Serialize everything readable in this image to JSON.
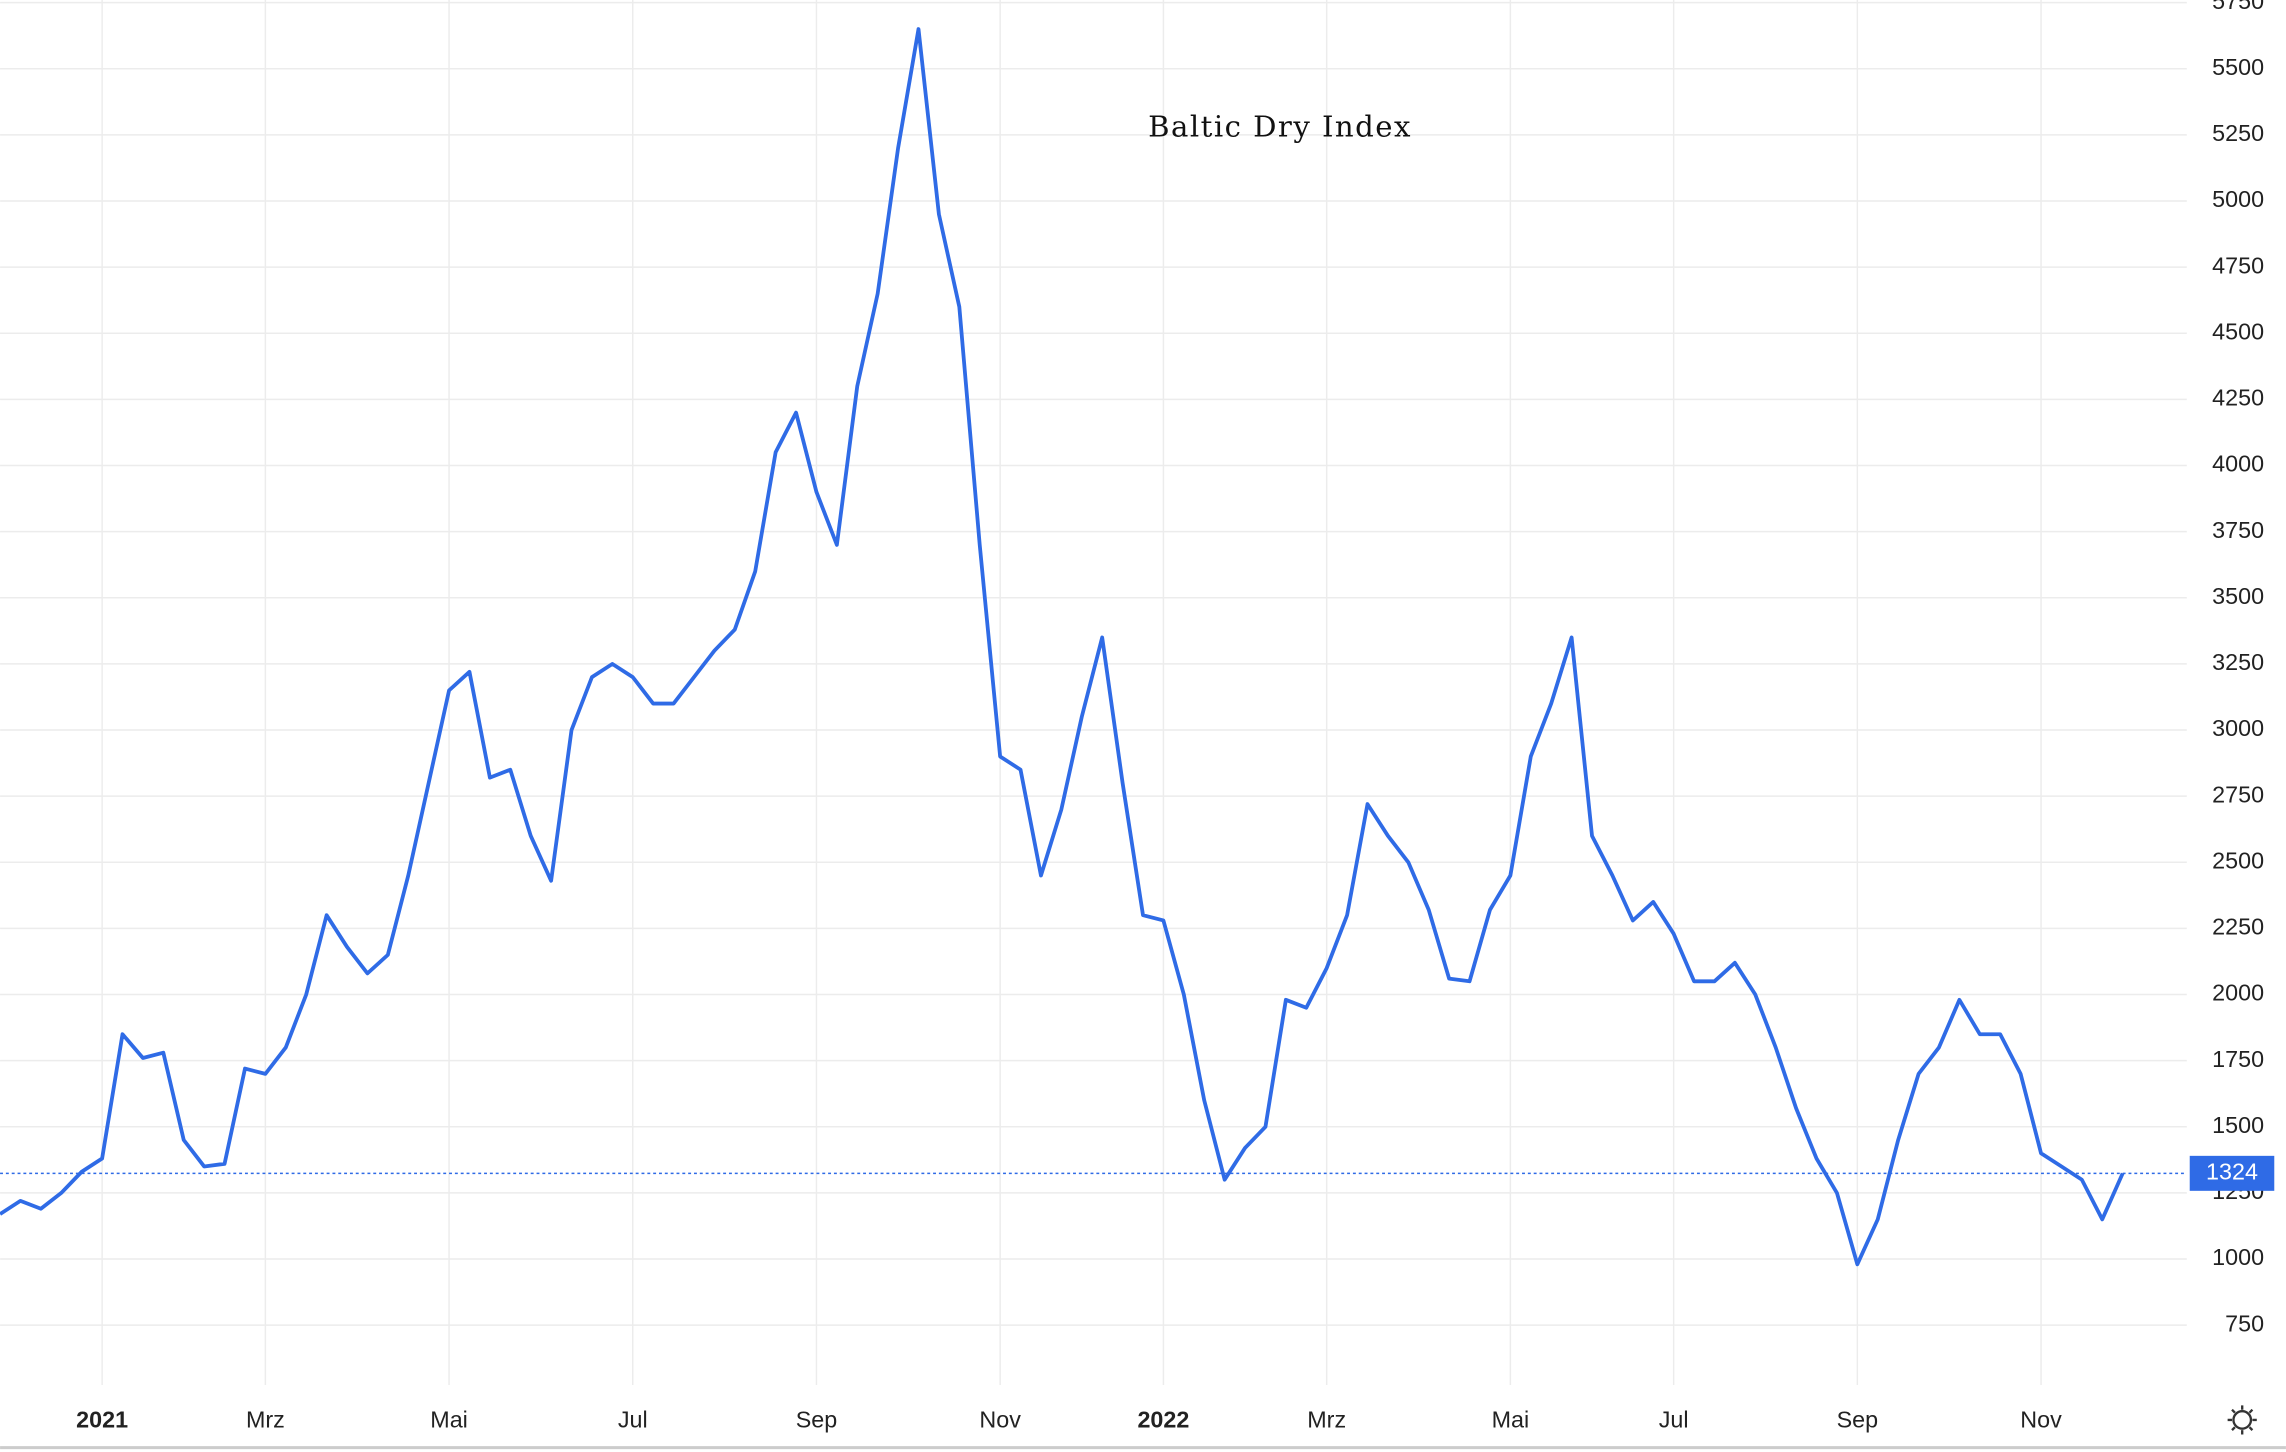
{
  "chart_data": {
    "type": "line",
    "title": "Baltic Dry Index",
    "categories": [
      null,
      null,
      null,
      null,
      null,
      "2021",
      null,
      null,
      null,
      null,
      null,
      null,
      null,
      "Mrz",
      null,
      null,
      null,
      null,
      null,
      null,
      null,
      null,
      "Mai",
      null,
      null,
      null,
      null,
      null,
      null,
      null,
      null,
      "Jul",
      null,
      null,
      null,
      null,
      null,
      null,
      null,
      null,
      "Sep",
      null,
      null,
      null,
      null,
      null,
      null,
      null,
      null,
      "Nov",
      null,
      null,
      null,
      null,
      null,
      null,
      null,
      "2022",
      null,
      null,
      null,
      null,
      null,
      null,
      null,
      "Mrz",
      null,
      null,
      null,
      null,
      null,
      null,
      null,
      null,
      "Mai",
      null,
      null,
      null,
      null,
      null,
      null,
      null,
      "Jul",
      null,
      null,
      null,
      null,
      null,
      null,
      null,
      null,
      "Sep",
      null,
      null,
      null,
      null,
      null,
      null,
      null,
      null,
      "Nov",
      null,
      null,
      null,
      null
    ],
    "values": [
      1170,
      1220,
      1190,
      1250,
      1330,
      1380,
      1850,
      1760,
      1780,
      1450,
      1350,
      1360,
      1720,
      1700,
      1800,
      2000,
      2300,
      2180,
      2080,
      2150,
      2450,
      2800,
      3150,
      3220,
      2820,
      2850,
      2600,
      2430,
      3000,
      3200,
      3250,
      3200,
      3100,
      3100,
      3200,
      3300,
      3380,
      3600,
      4050,
      4200,
      3900,
      3700,
      4300,
      4650,
      5200,
      5650,
      4950,
      4600,
      3700,
      2900,
      2850,
      2450,
      2700,
      3050,
      3350,
      2800,
      2300,
      2280,
      2000,
      1600,
      1300,
      1420,
      1500,
      1980,
      1950,
      2100,
      2300,
      2720,
      2600,
      2500,
      2320,
      2060,
      2050,
      2320,
      2450,
      2900,
      3100,
      3350,
      2600,
      2450,
      2280,
      2350,
      2230,
      2050,
      2050,
      2120,
      2000,
      1800,
      1570,
      1380,
      1250,
      980,
      1150,
      1450,
      1700,
      1800,
      1980,
      1850,
      1850,
      1700,
      1400,
      1350,
      1300,
      1150,
      1324
    ],
    "color": "#2f6be6",
    "ylim": [
      524,
      5760
    ],
    "yticks": [
      750,
      1000,
      1250,
      1500,
      1750,
      2000,
      2250,
      2500,
      2750,
      3000,
      3250,
      3500,
      3750,
      4000,
      4250,
      4500,
      4750,
      5000,
      5250,
      5500,
      5750
    ],
    "grid": true
  }
}
